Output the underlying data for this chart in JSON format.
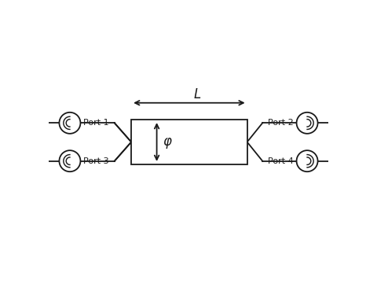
{
  "bg_color": "#ffffff",
  "line_color": "#1a1a1a",
  "figsize": [
    4.8,
    3.61
  ],
  "dpi": 100,
  "port1_label": "Port 1",
  "port2_label": "Port 2",
  "port3_label": "Port 3",
  "port4_label": "Port 4",
  "L_label": "L",
  "phi_label": "φ"
}
